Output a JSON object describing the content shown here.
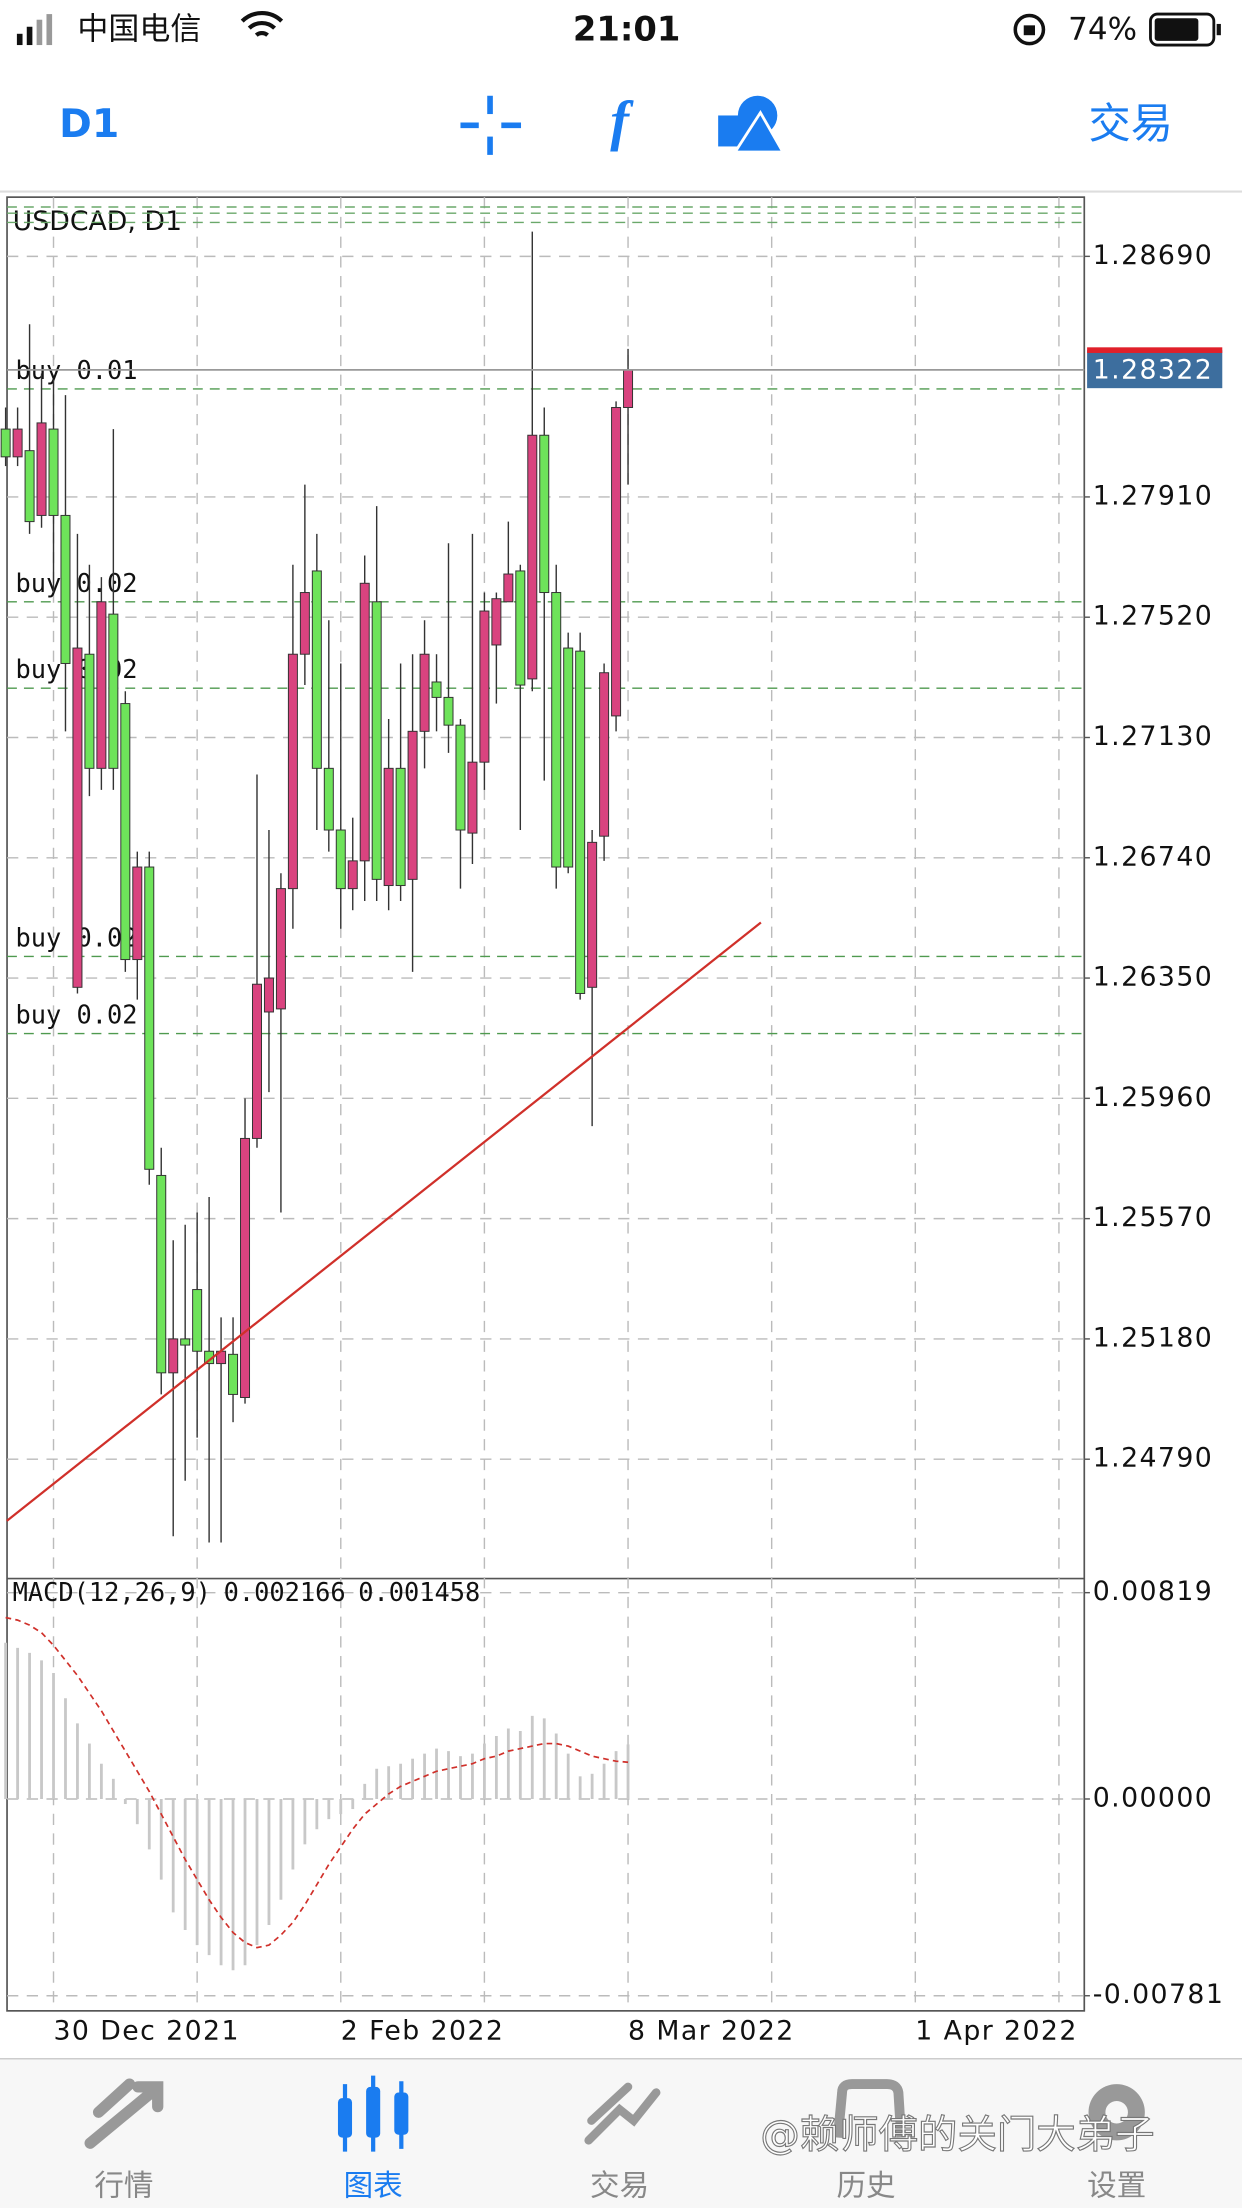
{
  "status_bar": {
    "carrier": "中国电信",
    "time": "21:01",
    "battery": "74%"
  },
  "toolbar": {
    "timeframe": "D1",
    "trade": "交易"
  },
  "chart_data": [
    {
      "type": "candlestick",
      "title": "USDCAD, D1",
      "categories": [
        null,
        null,
        null,
        null,
        "30 Dec 2021",
        null,
        null,
        null,
        null,
        null,
        null,
        null,
        null,
        null,
        null,
        null,
        null,
        null,
        null,
        null,
        null,
        null,
        null,
        null,
        null,
        null,
        null,
        null,
        "2 Feb 2022",
        null,
        null,
        null,
        null,
        null,
        null,
        null,
        null,
        null,
        null,
        null,
        null,
        null,
        null,
        null,
        null,
        null,
        null,
        null,
        null,
        null,
        null,
        null,
        "8 Mar 2022",
        null,
        null,
        null,
        null,
        null,
        null,
        null,
        null,
        null,
        null,
        null,
        null,
        null,
        null,
        null,
        null,
        null,
        null,
        null,
        null,
        null,
        null,
        null,
        "1 Apr 2022"
      ],
      "open": [
        1.2813,
        1.2804,
        1.2806,
        1.2785,
        1.2813,
        1.2785,
        1.2632,
        1.274,
        1.2703,
        1.2753,
        1.2724,
        1.2641,
        1.2671,
        1.2571,
        1.2507,
        1.2518,
        1.2534,
        1.2514,
        1.251,
        1.2513,
        1.2499,
        1.2583,
        1.2624,
        1.2625,
        1.2664,
        1.274,
        1.2767,
        1.2703,
        1.2683,
        1.2664,
        1.2673,
        1.2757,
        1.2665,
        1.2703,
        1.2667,
        1.2715,
        1.2731,
        1.2726,
        1.2717,
        1.2682,
        1.2705,
        1.2743,
        1.2757,
        1.2767,
        1.2732,
        1.2811,
        1.276,
        1.2742,
        1.2741,
        1.2632,
        1.2681,
        1.272,
        1.282,
        null,
        null,
        null,
        null,
        null,
        null,
        null,
        null,
        null,
        null,
        null,
        null,
        null,
        null,
        null,
        null,
        null,
        null,
        null,
        null,
        null,
        null,
        null,
        null
      ],
      "high": [
        1.282,
        1.282,
        1.2847,
        1.2831,
        1.2829,
        1.2824,
        1.2779,
        1.2769,
        1.2765,
        1.2813,
        1.2728,
        1.2676,
        1.2676,
        1.258,
        1.255,
        1.2555,
        1.2559,
        1.2564,
        1.2525,
        1.2525,
        1.2596,
        1.2701,
        1.2683,
        1.2669,
        1.2769,
        1.2795,
        1.2779,
        1.2751,
        1.2737,
        1.2687,
        1.2772,
        1.2788,
        1.2719,
        1.2737,
        1.274,
        1.2751,
        1.274,
        1.2776,
        1.2719,
        1.2779,
        1.276,
        1.276,
        1.2783,
        1.2769,
        1.2877,
        1.282,
        1.2769,
        1.2747,
        1.2747,
        1.2683,
        1.2737,
        1.2822,
        1.2839,
        null,
        null,
        null,
        null,
        null,
        null,
        null,
        null,
        null,
        null,
        null,
        null,
        null,
        null,
        null,
        null,
        null,
        null,
        null,
        null,
        null,
        null,
        null,
        null
      ],
      "low": [
        1.2801,
        1.2801,
        1.2779,
        1.2781,
        1.276,
        1.2715,
        1.263,
        1.2694,
        1.2696,
        1.2696,
        1.2637,
        1.2628,
        1.2568,
        1.25,
        1.2454,
        1.2472,
        1.2486,
        1.2452,
        1.2452,
        1.2491,
        1.2497,
        1.258,
        1.2598,
        1.2559,
        1.2651,
        1.273,
        1.2683,
        1.2676,
        1.2651,
        1.2657,
        1.266,
        1.266,
        1.2657,
        1.266,
        1.2637,
        1.2703,
        1.2715,
        1.2708,
        1.2664,
        1.2672,
        1.2696,
        1.2724,
        1.2757,
        1.2683,
        1.2728,
        1.2699,
        1.2664,
        1.2669,
        1.2628,
        1.2587,
        1.2673,
        1.2715,
        1.2795,
        null,
        null,
        null,
        null,
        null,
        null,
        null,
        null,
        null,
        null,
        null,
        null,
        null,
        null,
        null,
        null,
        null,
        null,
        null,
        null,
        null,
        null,
        null,
        null
      ],
      "close": [
        1.2804,
        1.2813,
        1.2783,
        1.2815,
        1.2785,
        1.2737,
        1.2742,
        1.2703,
        1.2757,
        1.2703,
        1.2641,
        1.2671,
        1.2573,
        1.2507,
        1.2518,
        1.2516,
        1.2514,
        1.251,
        1.2514,
        1.25,
        1.2583,
        1.2633,
        1.2635,
        1.2664,
        1.274,
        1.276,
        1.2703,
        1.2683,
        1.2664,
        1.2673,
        1.2763,
        1.2667,
        1.2703,
        1.2665,
        1.2715,
        1.274,
        1.2726,
        1.2717,
        1.2683,
        1.2705,
        1.2754,
        1.2758,
        1.2766,
        1.273,
        1.2811,
        1.276,
        1.2671,
        1.2671,
        1.263,
        1.2679,
        1.2734,
        1.282,
        1.28322,
        null,
        null,
        null,
        null,
        null,
        null,
        null,
        null,
        null,
        null,
        null,
        null,
        null,
        null,
        null,
        null,
        null,
        null,
        null,
        null,
        null,
        null,
        null,
        null
      ],
      "up_color": "#d9437f",
      "down_color": "#6ee35a",
      "ylim": [
        1.24403,
        1.28882
      ],
      "yticks": [
        {
          "value": 1.2869,
          "label": "1.28690"
        },
        {
          "value": 1.2791,
          "label": "1.27910"
        },
        {
          "value": 1.2752,
          "label": "1.27520"
        },
        {
          "value": 1.2713,
          "label": "1.27130"
        },
        {
          "value": 1.2674,
          "label": "1.26740"
        },
        {
          "value": 1.2635,
          "label": "1.26350"
        },
        {
          "value": 1.2596,
          "label": "1.25960"
        },
        {
          "value": 1.2557,
          "label": "1.25570"
        },
        {
          "value": 1.2518,
          "label": "1.25180"
        },
        {
          "value": 1.2479,
          "label": "1.24790"
        }
      ],
      "grid": true,
      "orders": [
        {
          "label": "buy 0.01",
          "price": 1.2826
        },
        {
          "label": "buy 0.02",
          "price": 1.2757
        },
        {
          "label": "buy 0.02",
          "price": 1.2729
        },
        {
          "label": "buy 0.02",
          "price": 1.2642
        },
        {
          "label": "buy 0.02",
          "price": 1.2617
        }
      ],
      "levels": [
        1.2885,
        1.2883,
        1.288
      ],
      "trendline": {
        "x": [
          0.1,
          63.1
        ],
        "values": [
          1.2459,
          1.2653
        ],
        "color": "#d0302a"
      }
    },
    {
      "type": "macd",
      "title": "MACD(12,26,9)",
      "ylim": [
        -0.00841,
        0.00875
      ],
      "yticks": [
        0.00819,
        {
          "value": 0,
          "label": "0.00000"
        },
        -0.00781
      ],
      "histogram": {
        "color": "#c8c8c8",
        "values": [
          0.0062,
          0.006,
          0.0058,
          0.0055,
          0.005,
          0.004,
          0.003,
          0.0022,
          0.0014,
          0.0008,
          -0.0002,
          -0.001,
          -0.002,
          -0.0032,
          -0.0045,
          -0.0052,
          -0.0058,
          -0.0062,
          -0.0066,
          -0.0068,
          -0.0066,
          -0.0058,
          -0.005,
          -0.004,
          -0.0028,
          -0.0018,
          -0.0012,
          -0.0008,
          -0.0006,
          -0.0004,
          0.0006,
          0.0012,
          0.0013,
          0.0014,
          0.0016,
          0.0018,
          0.002,
          0.0019,
          0.0017,
          0.0018,
          0.0022,
          0.0025,
          0.0028,
          0.0027,
          0.0033,
          0.0032,
          0.0026,
          0.0018,
          0.0009,
          0.001,
          0.0014,
          0.0019,
          0.002166
        ]
      },
      "signal": {
        "color": "#d0302a",
        "values": [
          0.0072,
          0.0071,
          0.0069,
          0.0066,
          0.0061,
          0.0055,
          0.0049,
          0.0042,
          0.0035,
          0.0027,
          0.0019,
          0.0011,
          0.0003,
          -0.0006,
          -0.0015,
          -0.0024,
          -0.0032,
          -0.004,
          -0.0047,
          -0.0053,
          -0.0057,
          -0.0059,
          -0.0058,
          -0.0054,
          -0.0049,
          -0.0042,
          -0.0034,
          -0.0026,
          -0.0019,
          -0.0012,
          -0.0006,
          -0.0002,
          0.0002,
          0.0005,
          0.0007,
          0.0009,
          0.0011,
          0.0012,
          0.0013,
          0.0014,
          0.0016,
          0.0017,
          0.0019,
          0.002,
          0.0021,
          0.0022,
          0.0022,
          0.0021,
          0.0019,
          0.0017,
          0.0016,
          0.0015,
          0.001458
        ]
      }
    }
  ],
  "tab_bar": {
    "tabs": [
      "行情",
      "图表",
      "交易",
      "历史",
      "设置"
    ]
  },
  "watermark": "@赖师傅的关门大弟子"
}
